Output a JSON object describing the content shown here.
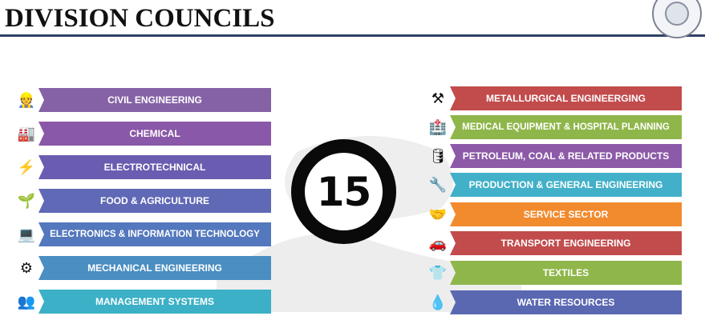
{
  "header": {
    "title": "DIVISION COUNCILS"
  },
  "center": {
    "count": "15"
  },
  "left": [
    {
      "label": "CIVIL ENGINEERING",
      "color": "#8562a6",
      "icon": "hard-hat-worker-icon"
    },
    {
      "label": "CHEMICAL",
      "color": "#8a58a8",
      "icon": "factory-icon"
    },
    {
      "label": "ELECTROTECHNICAL",
      "color": "#6a5cb0",
      "icon": "electric-plant-icon"
    },
    {
      "label": "FOOD & AGRICULTURE",
      "color": "#6069b6",
      "icon": "plant-sprout-icon"
    },
    {
      "label": "ELECTRONICS & INFORMATION TECHNOLOGY",
      "color": "#5478bd",
      "icon": "person-at-computer-icon"
    },
    {
      "label": "MECHANICAL ENGINEERING",
      "color": "#4a8ec2",
      "icon": "gear-machine-icon"
    },
    {
      "label": "MANAGEMENT SYSTEMS",
      "color": "#3cb0c6",
      "icon": "team-network-icon"
    }
  ],
  "right": [
    {
      "label": "METALLURGICAL ENGINEERGING",
      "color": "#c24b4c",
      "icon": "metal-forge-icon"
    },
    {
      "label": "MEDICAL EQUIPMENT & HOSPITAL PLANNING",
      "color": "#8fb64a",
      "icon": "hospital-icon"
    },
    {
      "label": "PETROLEUM, COAL & RELATED PRODUCTS",
      "color": "#8c5aa8",
      "icon": "oil-pump-icon"
    },
    {
      "label": "PRODUCTION & GENERAL ENGINEERING",
      "color": "#42b0c8",
      "icon": "worker-gear-icon"
    },
    {
      "label": "SERVICE SECTOR",
      "color": "#f28a2e",
      "icon": "service-hand-icon"
    },
    {
      "label": "TRANSPORT ENGINEERING",
      "color": "#c24b4c",
      "icon": "car-icon"
    },
    {
      "label": "TEXTILES",
      "color": "#8fb64a",
      "icon": "tshirt-icon"
    },
    {
      "label": "WATER RESOURCES",
      "color": "#5a68b2",
      "icon": "water-drop-icon"
    }
  ]
}
